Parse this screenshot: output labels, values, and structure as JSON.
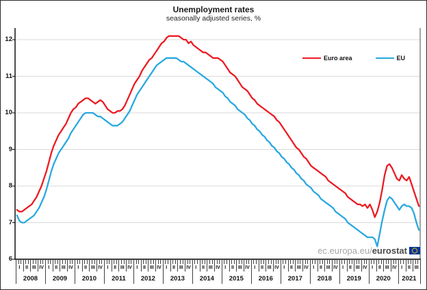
{
  "header": {
    "title": "Unemployment rates",
    "subtitle": "seasonally adjusted series, %"
  },
  "legend": [
    {
      "label": "Euro area",
      "color": "#ec1b23"
    },
    {
      "label": "EU",
      "color": "#29a8e0"
    }
  ],
  "watermark": {
    "prefix": "ec.europa.eu/",
    "bold": "eurostat",
    "flag_icon": "eu-flag"
  },
  "chart_data": {
    "type": "line",
    "title": "Unemployment rates",
    "subtitle": "seasonally adjusted series, %",
    "ylabel": "%",
    "ylim": [
      6,
      12
    ],
    "y_ticks": [
      6,
      7,
      8,
      9,
      10,
      11,
      12
    ],
    "grid": true,
    "legend_position": "top-right-inside",
    "x_unit": "month",
    "x_start": "2008-01",
    "x_end": "2021-09",
    "colors": {
      "grid": "#d9d9d9",
      "axis": "#000000",
      "tick": "#3f3f3f"
    },
    "years": [
      {
        "label": "2008",
        "quarters": [
          "I",
          "II",
          "III",
          "IV"
        ]
      },
      {
        "label": "2009",
        "quarters": [
          "I",
          "II",
          "III",
          "IV"
        ]
      },
      {
        "label": "2010",
        "quarters": [
          "I",
          "II",
          "III",
          "IV"
        ]
      },
      {
        "label": "2011",
        "quarters": [
          "I",
          "II",
          "III",
          "IV"
        ]
      },
      {
        "label": "2012",
        "quarters": [
          "I",
          "II",
          "III",
          "IV"
        ]
      },
      {
        "label": "2013",
        "quarters": [
          "I",
          "II",
          "III",
          "IV"
        ]
      },
      {
        "label": "2014",
        "quarters": [
          "I",
          "II",
          "III",
          "IV"
        ]
      },
      {
        "label": "2015",
        "quarters": [
          "I",
          "II",
          "III",
          "IV"
        ]
      },
      {
        "label": "2016",
        "quarters": [
          "I",
          "II",
          "III",
          "IV"
        ]
      },
      {
        "label": "2017",
        "quarters": [
          "I",
          "II",
          "III",
          "IV"
        ]
      },
      {
        "label": "2018",
        "quarters": [
          "I",
          "II",
          "III",
          "IV"
        ]
      },
      {
        "label": "2019",
        "quarters": [
          "I",
          "II",
          "III",
          "IV"
        ]
      },
      {
        "label": "2020",
        "quarters": [
          "I",
          "II",
          "III",
          "IV"
        ]
      },
      {
        "label": "2021",
        "quarters": [
          "I",
          "II",
          "III"
        ]
      }
    ],
    "series": [
      {
        "name": "Euro area",
        "color": "#ec1b23",
        "values": [
          7.35,
          7.3,
          7.3,
          7.35,
          7.4,
          7.45,
          7.5,
          7.6,
          7.7,
          7.85,
          8.0,
          8.2,
          8.4,
          8.65,
          8.9,
          9.1,
          9.25,
          9.4,
          9.5,
          9.6,
          9.7,
          9.85,
          10.0,
          10.1,
          10.15,
          10.25,
          10.3,
          10.35,
          10.4,
          10.4,
          10.35,
          10.3,
          10.25,
          10.3,
          10.35,
          10.3,
          10.2,
          10.1,
          10.05,
          10.0,
          10.0,
          10.05,
          10.05,
          10.1,
          10.2,
          10.35,
          10.5,
          10.65,
          10.8,
          10.9,
          11.0,
          11.15,
          11.25,
          11.35,
          11.45,
          11.5,
          11.6,
          11.7,
          11.8,
          11.9,
          11.95,
          12.05,
          12.1,
          12.1,
          12.1,
          12.1,
          12.1,
          12.05,
          12.0,
          12.0,
          11.9,
          11.95,
          11.85,
          11.8,
          11.75,
          11.7,
          11.65,
          11.65,
          11.6,
          11.55,
          11.5,
          11.5,
          11.5,
          11.45,
          11.4,
          11.3,
          11.2,
          11.1,
          11.05,
          11.0,
          10.9,
          10.8,
          10.7,
          10.65,
          10.6,
          10.5,
          10.4,
          10.35,
          10.25,
          10.2,
          10.15,
          10.1,
          10.05,
          10.0,
          9.95,
          9.9,
          9.8,
          9.75,
          9.65,
          9.55,
          9.45,
          9.35,
          9.25,
          9.15,
          9.05,
          9.0,
          8.9,
          8.8,
          8.75,
          8.65,
          8.55,
          8.5,
          8.45,
          8.4,
          8.35,
          8.3,
          8.25,
          8.15,
          8.1,
          8.05,
          8.0,
          7.95,
          7.9,
          7.85,
          7.8,
          7.7,
          7.65,
          7.6,
          7.55,
          7.5,
          7.5,
          7.45,
          7.5,
          7.4,
          7.5,
          7.35,
          7.15,
          7.3,
          7.55,
          7.9,
          8.3,
          8.55,
          8.6,
          8.5,
          8.35,
          8.2,
          8.15,
          8.3,
          8.2,
          8.15,
          8.25,
          8.05,
          7.85,
          7.65,
          7.45
        ]
      },
      {
        "name": "EU",
        "color": "#29a8e0",
        "values": [
          7.2,
          7.05,
          7.0,
          7.0,
          7.05,
          7.1,
          7.15,
          7.2,
          7.3,
          7.4,
          7.55,
          7.7,
          7.9,
          8.15,
          8.4,
          8.6,
          8.75,
          8.9,
          9.0,
          9.1,
          9.2,
          9.3,
          9.45,
          9.55,
          9.65,
          9.75,
          9.85,
          9.95,
          10.0,
          10.0,
          10.0,
          10.0,
          9.95,
          9.9,
          9.9,
          9.85,
          9.8,
          9.75,
          9.7,
          9.65,
          9.65,
          9.65,
          9.7,
          9.75,
          9.85,
          9.95,
          10.05,
          10.2,
          10.35,
          10.5,
          10.6,
          10.7,
          10.8,
          10.9,
          11.0,
          11.1,
          11.2,
          11.3,
          11.35,
          11.4,
          11.45,
          11.5,
          11.5,
          11.5,
          11.5,
          11.5,
          11.45,
          11.4,
          11.4,
          11.35,
          11.3,
          11.25,
          11.2,
          11.15,
          11.1,
          11.05,
          11.0,
          10.95,
          10.9,
          10.85,
          10.8,
          10.7,
          10.65,
          10.6,
          10.55,
          10.45,
          10.4,
          10.3,
          10.25,
          10.2,
          10.1,
          10.05,
          10.0,
          9.95,
          9.85,
          9.8,
          9.7,
          9.65,
          9.55,
          9.5,
          9.4,
          9.35,
          9.25,
          9.2,
          9.1,
          9.05,
          8.95,
          8.9,
          8.8,
          8.75,
          8.65,
          8.6,
          8.5,
          8.45,
          8.35,
          8.3,
          8.2,
          8.15,
          8.05,
          8.0,
          7.95,
          7.85,
          7.8,
          7.75,
          7.65,
          7.6,
          7.55,
          7.5,
          7.45,
          7.4,
          7.3,
          7.25,
          7.2,
          7.15,
          7.1,
          7.0,
          6.95,
          6.9,
          6.85,
          6.8,
          6.75,
          6.7,
          6.65,
          6.6,
          6.6,
          6.6,
          6.55,
          6.35,
          6.7,
          7.05,
          7.35,
          7.6,
          7.7,
          7.65,
          7.55,
          7.45,
          7.35,
          7.45,
          7.5,
          7.45,
          7.45,
          7.4,
          7.25,
          7.0,
          6.8
        ]
      }
    ]
  }
}
